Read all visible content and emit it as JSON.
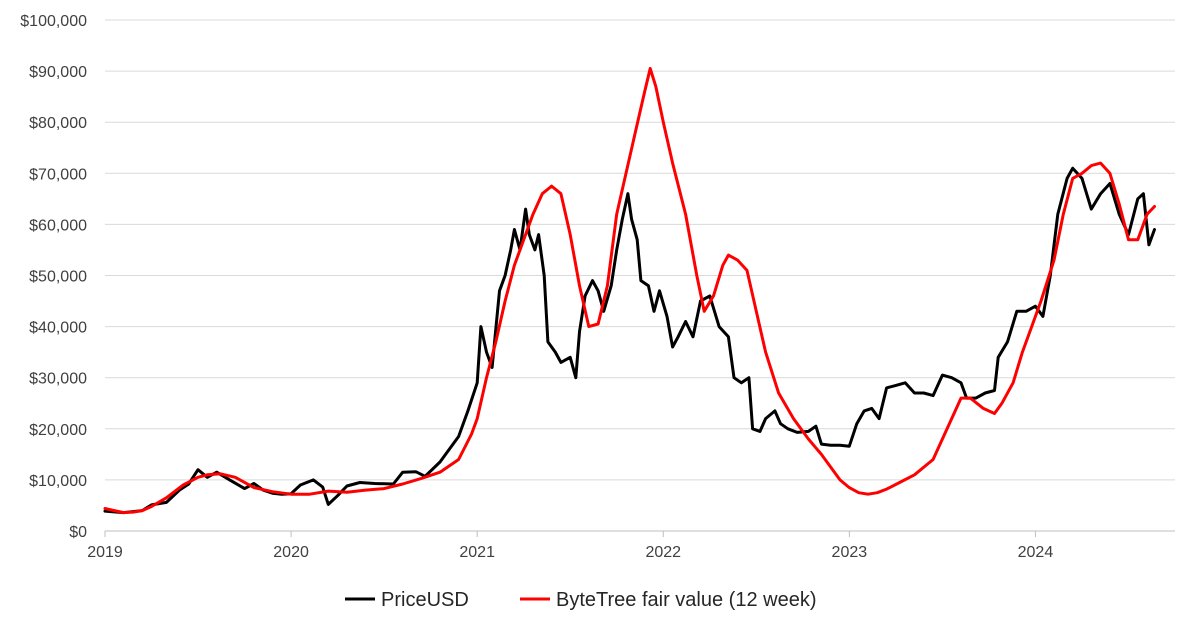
{
  "chart_data": {
    "type": "line",
    "title": "",
    "xlabel": "",
    "ylabel": "",
    "xlim": [
      2019.0,
      2024.75
    ],
    "ylim": [
      0,
      100000
    ],
    "grid": true,
    "legend_position": "bottom",
    "y_ticks": [
      {
        "value": 0,
        "label": "$0"
      },
      {
        "value": 10000,
        "label": "$10,000"
      },
      {
        "value": 20000,
        "label": "$20,000"
      },
      {
        "value": 30000,
        "label": "$30,000"
      },
      {
        "value": 40000,
        "label": "$40,000"
      },
      {
        "value": 50000,
        "label": "$50,000"
      },
      {
        "value": 60000,
        "label": "$60,000"
      },
      {
        "value": 70000,
        "label": "$70,000"
      },
      {
        "value": 80000,
        "label": "$80,000"
      },
      {
        "value": 90000,
        "label": "$90,000"
      },
      {
        "value": 100000,
        "label": "$100,000"
      }
    ],
    "x_ticks": [
      {
        "value": 2019,
        "label": "2019"
      },
      {
        "value": 2020,
        "label": "2020"
      },
      {
        "value": 2021,
        "label": "2021"
      },
      {
        "value": 2022,
        "label": "2022"
      },
      {
        "value": 2023,
        "label": "2023"
      },
      {
        "value": 2024,
        "label": "2024"
      }
    ],
    "series": [
      {
        "name": "PriceUSD",
        "color": "#000000",
        "points": [
          [
            2019.0,
            3900
          ],
          [
            2019.1,
            3600
          ],
          [
            2019.2,
            4000
          ],
          [
            2019.25,
            5100
          ],
          [
            2019.33,
            5600
          ],
          [
            2019.4,
            8000
          ],
          [
            2019.45,
            9200
          ],
          [
            2019.5,
            12000
          ],
          [
            2019.55,
            10500
          ],
          [
            2019.6,
            11500
          ],
          [
            2019.67,
            10000
          ],
          [
            2019.75,
            8300
          ],
          [
            2019.8,
            9300
          ],
          [
            2019.85,
            8000
          ],
          [
            2019.9,
            7400
          ],
          [
            2019.95,
            7200
          ],
          [
            2020.0,
            7300
          ],
          [
            2020.05,
            9000
          ],
          [
            2020.12,
            10000
          ],
          [
            2020.17,
            8600
          ],
          [
            2020.2,
            5200
          ],
          [
            2020.25,
            6900
          ],
          [
            2020.3,
            8800
          ],
          [
            2020.37,
            9500
          ],
          [
            2020.45,
            9300
          ],
          [
            2020.55,
            9200
          ],
          [
            2020.6,
            11500
          ],
          [
            2020.67,
            11600
          ],
          [
            2020.72,
            10700
          ],
          [
            2020.8,
            13500
          ],
          [
            2020.85,
            16000
          ],
          [
            2020.9,
            18500
          ],
          [
            2020.95,
            23500
          ],
          [
            2021.0,
            29000
          ],
          [
            2021.02,
            40000
          ],
          [
            2021.05,
            35000
          ],
          [
            2021.08,
            32000
          ],
          [
            2021.12,
            47000
          ],
          [
            2021.15,
            50000
          ],
          [
            2021.18,
            55000
          ],
          [
            2021.2,
            59000
          ],
          [
            2021.23,
            55000
          ],
          [
            2021.26,
            63000
          ],
          [
            2021.28,
            58000
          ],
          [
            2021.31,
            55000
          ],
          [
            2021.33,
            58000
          ],
          [
            2021.36,
            50000
          ],
          [
            2021.38,
            37000
          ],
          [
            2021.42,
            35000
          ],
          [
            2021.45,
            33000
          ],
          [
            2021.5,
            34000
          ],
          [
            2021.53,
            30000
          ],
          [
            2021.55,
            39000
          ],
          [
            2021.58,
            46000
          ],
          [
            2021.62,
            49000
          ],
          [
            2021.65,
            47000
          ],
          [
            2021.68,
            43000
          ],
          [
            2021.72,
            48000
          ],
          [
            2021.75,
            55000
          ],
          [
            2021.78,
            61000
          ],
          [
            2021.81,
            66000
          ],
          [
            2021.83,
            61000
          ],
          [
            2021.86,
            57000
          ],
          [
            2021.88,
            49000
          ],
          [
            2021.92,
            48000
          ],
          [
            2021.95,
            43000
          ],
          [
            2021.98,
            47000
          ],
          [
            2022.02,
            42000
          ],
          [
            2022.05,
            36000
          ],
          [
            2022.08,
            38000
          ],
          [
            2022.12,
            41000
          ],
          [
            2022.16,
            38000
          ],
          [
            2022.2,
            45000
          ],
          [
            2022.25,
            46000
          ],
          [
            2022.3,
            40000
          ],
          [
            2022.35,
            38000
          ],
          [
            2022.38,
            30000
          ],
          [
            2022.42,
            29000
          ],
          [
            2022.46,
            30000
          ],
          [
            2022.48,
            20000
          ],
          [
            2022.52,
            19500
          ],
          [
            2022.55,
            22000
          ],
          [
            2022.6,
            23500
          ],
          [
            2022.63,
            21000
          ],
          [
            2022.67,
            20000
          ],
          [
            2022.72,
            19300
          ],
          [
            2022.78,
            19500
          ],
          [
            2022.82,
            20500
          ],
          [
            2022.85,
            17000
          ],
          [
            2022.9,
            16800
          ],
          [
            2022.95,
            16800
          ],
          [
            2023.0,
            16600
          ],
          [
            2023.04,
            21000
          ],
          [
            2023.08,
            23500
          ],
          [
            2023.12,
            24000
          ],
          [
            2023.16,
            22000
          ],
          [
            2023.2,
            28000
          ],
          [
            2023.25,
            28500
          ],
          [
            2023.3,
            29000
          ],
          [
            2023.35,
            27000
          ],
          [
            2023.4,
            27000
          ],
          [
            2023.45,
            26500
          ],
          [
            2023.5,
            30500
          ],
          [
            2023.55,
            30000
          ],
          [
            2023.6,
            29000
          ],
          [
            2023.63,
            26000
          ],
          [
            2023.68,
            26000
          ],
          [
            2023.73,
            27000
          ],
          [
            2023.78,
            27500
          ],
          [
            2023.8,
            34000
          ],
          [
            2023.85,
            37000
          ],
          [
            2023.9,
            43000
          ],
          [
            2023.95,
            43000
          ],
          [
            2024.0,
            44000
          ],
          [
            2024.04,
            42000
          ],
          [
            2024.08,
            50000
          ],
          [
            2024.12,
            62000
          ],
          [
            2024.17,
            69000
          ],
          [
            2024.2,
            71000
          ],
          [
            2024.25,
            69000
          ],
          [
            2024.3,
            63000
          ],
          [
            2024.35,
            66000
          ],
          [
            2024.4,
            68000
          ],
          [
            2024.45,
            62000
          ],
          [
            2024.5,
            58000
          ],
          [
            2024.55,
            65000
          ],
          [
            2024.58,
            66000
          ],
          [
            2024.61,
            56000
          ],
          [
            2024.64,
            59000
          ]
        ]
      },
      {
        "name": "ByteTree fair value (12 week)",
        "color": "#ff0000",
        "points": [
          [
            2019.0,
            4400
          ],
          [
            2019.05,
            4000
          ],
          [
            2019.1,
            3600
          ],
          [
            2019.15,
            3700
          ],
          [
            2019.2,
            4000
          ],
          [
            2019.25,
            4800
          ],
          [
            2019.33,
            6500
          ],
          [
            2019.42,
            9000
          ],
          [
            2019.5,
            10500
          ],
          [
            2019.55,
            11000
          ],
          [
            2019.62,
            11200
          ],
          [
            2019.7,
            10500
          ],
          [
            2019.8,
            8500
          ],
          [
            2019.9,
            7700
          ],
          [
            2020.0,
            7200
          ],
          [
            2020.1,
            7200
          ],
          [
            2020.2,
            7800
          ],
          [
            2020.3,
            7600
          ],
          [
            2020.4,
            8000
          ],
          [
            2020.5,
            8300
          ],
          [
            2020.6,
            9200
          ],
          [
            2020.7,
            10300
          ],
          [
            2020.8,
            11500
          ],
          [
            2020.9,
            14000
          ],
          [
            2020.97,
            19000
          ],
          [
            2021.0,
            22000
          ],
          [
            2021.05,
            30000
          ],
          [
            2021.1,
            37000
          ],
          [
            2021.15,
            45000
          ],
          [
            2021.2,
            52000
          ],
          [
            2021.25,
            57000
          ],
          [
            2021.3,
            62000
          ],
          [
            2021.35,
            66000
          ],
          [
            2021.4,
            67500
          ],
          [
            2021.45,
            66000
          ],
          [
            2021.5,
            58000
          ],
          [
            2021.55,
            48000
          ],
          [
            2021.6,
            40000
          ],
          [
            2021.65,
            40500
          ],
          [
            2021.7,
            48000
          ],
          [
            2021.75,
            62000
          ],
          [
            2021.8,
            70000
          ],
          [
            2021.85,
            78000
          ],
          [
            2021.9,
            86000
          ],
          [
            2021.93,
            90500
          ],
          [
            2021.96,
            87000
          ],
          [
            2022.0,
            80000
          ],
          [
            2022.05,
            72000
          ],
          [
            2022.12,
            62000
          ],
          [
            2022.18,
            50000
          ],
          [
            2022.22,
            43000
          ],
          [
            2022.27,
            46000
          ],
          [
            2022.32,
            52000
          ],
          [
            2022.35,
            54000
          ],
          [
            2022.4,
            53000
          ],
          [
            2022.45,
            51000
          ],
          [
            2022.5,
            43000
          ],
          [
            2022.55,
            35000
          ],
          [
            2022.62,
            27000
          ],
          [
            2022.7,
            22000
          ],
          [
            2022.78,
            18000
          ],
          [
            2022.85,
            15000
          ],
          [
            2022.9,
            12500
          ],
          [
            2022.95,
            10000
          ],
          [
            2023.0,
            8500
          ],
          [
            2023.05,
            7500
          ],
          [
            2023.1,
            7200
          ],
          [
            2023.15,
            7500
          ],
          [
            2023.2,
            8200
          ],
          [
            2023.27,
            9500
          ],
          [
            2023.35,
            11000
          ],
          [
            2023.45,
            14000
          ],
          [
            2023.5,
            18000
          ],
          [
            2023.55,
            22000
          ],
          [
            2023.6,
            26000
          ],
          [
            2023.65,
            26000
          ],
          [
            2023.72,
            24000
          ],
          [
            2023.78,
            23000
          ],
          [
            2023.82,
            25000
          ],
          [
            2023.88,
            29000
          ],
          [
            2023.93,
            35000
          ],
          [
            2023.98,
            40000
          ],
          [
            2024.03,
            45000
          ],
          [
            2024.1,
            53000
          ],
          [
            2024.15,
            62000
          ],
          [
            2024.2,
            69000
          ],
          [
            2024.25,
            70000
          ],
          [
            2024.3,
            71500
          ],
          [
            2024.35,
            72000
          ],
          [
            2024.4,
            70000
          ],
          [
            2024.45,
            64000
          ],
          [
            2024.5,
            57000
          ],
          [
            2024.55,
            57000
          ],
          [
            2024.6,
            62000
          ],
          [
            2024.64,
            63500
          ]
        ]
      }
    ]
  }
}
